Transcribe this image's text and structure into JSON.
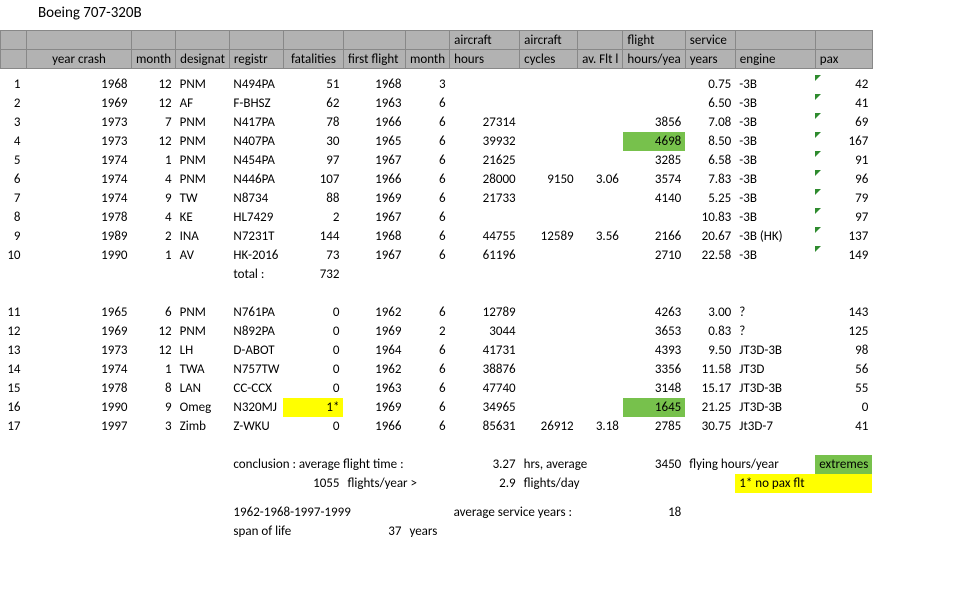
{
  "title": "Boeing 707-320B",
  "headers": {
    "top": {
      "hours": "aircraft",
      "cycles": "aircraft",
      "fhy": "flight",
      "svc": "service"
    },
    "main": {
      "year": "year crash",
      "month": "month",
      "desig": "designat",
      "reg": "registr",
      "fat": "fatalities",
      "ff": "first flight",
      "ffm": "month",
      "hours": "hours",
      "cycles": "cycles",
      "avflt": "av. Flt l",
      "fhy": "hours/yea",
      "svc": "years",
      "eng": "engine",
      "pax": "pax"
    }
  },
  "rows1": [
    {
      "n": "1",
      "year": "1968",
      "month": "12",
      "desig": "PNM",
      "reg": "N494PA",
      "fat": "51",
      "ff": "1968",
      "ffm": "3",
      "hours": "",
      "cycles": "",
      "avflt": "",
      "fhy": "",
      "svc": "0.75",
      "eng": "-3B",
      "pax": "42",
      "mk": true
    },
    {
      "n": "2",
      "year": "1969",
      "month": "12",
      "desig": "AF",
      "reg": "F-BHSZ",
      "fat": "62",
      "ff": "1963",
      "ffm": "6",
      "hours": "",
      "cycles": "",
      "avflt": "",
      "fhy": "",
      "svc": "6.50",
      "eng": "-3B",
      "pax": "41",
      "mk": true
    },
    {
      "n": "3",
      "year": "1973",
      "month": "7",
      "desig": "PNM",
      "reg": "N417PA",
      "fat": "78",
      "ff": "1966",
      "ffm": "6",
      "hours": "27314",
      "cycles": "",
      "avflt": "",
      "fhy": "3856",
      "svc": "7.08",
      "eng": "-3B",
      "pax": "69",
      "mk": true
    },
    {
      "n": "4",
      "year": "1973",
      "month": "12",
      "desig": "PNM",
      "reg": "N407PA",
      "fat": "30",
      "ff": "1965",
      "ffm": "6",
      "hours": "39932",
      "cycles": "",
      "avflt": "",
      "fhy": "4698",
      "fhy_hl": "green",
      "svc": "8.50",
      "eng": "-3B",
      "pax": "167",
      "mk": true
    },
    {
      "n": "5",
      "year": "1974",
      "month": "1",
      "desig": "PNM",
      "reg": "N454PA",
      "fat": "97",
      "ff": "1967",
      "ffm": "6",
      "hours": "21625",
      "cycles": "",
      "avflt": "",
      "fhy": "3285",
      "svc": "6.58",
      "eng": "-3B",
      "pax": "91",
      "mk": true
    },
    {
      "n": "6",
      "year": "1974",
      "month": "4",
      "desig": "PNM",
      "reg": "N446PA",
      "fat": "107",
      "ff": "1966",
      "ffm": "6",
      "hours": "28000",
      "cycles": "9150",
      "avflt": "3.06",
      "fhy": "3574",
      "svc": "7.83",
      "eng": "-3B",
      "pax": "96",
      "mk": true
    },
    {
      "n": "7",
      "year": "1974",
      "month": "9",
      "desig": "TW",
      "reg": "N8734",
      "fat": "88",
      "ff": "1969",
      "ffm": "6",
      "hours": "21733",
      "cycles": "",
      "avflt": "",
      "fhy": "4140",
      "svc": "5.25",
      "eng": "-3B",
      "pax": "79",
      "mk": true
    },
    {
      "n": "8",
      "year": "1978",
      "month": "4",
      "desig": "KE",
      "reg": "HL7429",
      "fat": "2",
      "ff": "1967",
      "ffm": "6",
      "hours": "",
      "cycles": "",
      "avflt": "",
      "fhy": "",
      "svc": "10.83",
      "eng": "-3B",
      "pax": "97",
      "mk": true
    },
    {
      "n": "9",
      "year": "1989",
      "month": "2",
      "desig": "INA",
      "reg": "N7231T",
      "fat": "144",
      "ff": "1968",
      "ffm": "6",
      "hours": "44755",
      "cycles": "12589",
      "avflt": "3.56",
      "fhy": "2166",
      "svc": "20.67",
      "eng": "-3B (HK)",
      "pax": "137",
      "mk": true
    },
    {
      "n": "10",
      "year": "1990",
      "month": "1",
      "desig": "AV",
      "reg": "HK-2016",
      "fat": "73",
      "ff": "1967",
      "ffm": "6",
      "hours": "61196",
      "cycles": "",
      "avflt": "",
      "fhy": "2710",
      "svc": "22.58",
      "eng": "-3B",
      "pax": "149",
      "mk": true
    }
  ],
  "total": {
    "label": "total :",
    "value": "732"
  },
  "rows2": [
    {
      "n": "11",
      "year": "1965",
      "month": "6",
      "desig": "PNM",
      "reg": "N761PA",
      "fat": "0",
      "ff": "1962",
      "ffm": "6",
      "hours": "12789",
      "cycles": "",
      "avflt": "",
      "fhy": "4263",
      "svc": "3.00",
      "eng": "?",
      "pax": "143"
    },
    {
      "n": "12",
      "year": "1969",
      "month": "12",
      "desig": "PNM",
      "reg": "N892PA",
      "fat": "0",
      "ff": "1969",
      "ffm": "2",
      "hours": "3044",
      "cycles": "",
      "avflt": "",
      "fhy": "3653",
      "svc": "0.83",
      "eng": "?",
      "pax": "125"
    },
    {
      "n": "13",
      "year": "1973",
      "month": "12",
      "desig": "LH",
      "reg": "D-ABOT",
      "fat": "0",
      "ff": "1964",
      "ffm": "6",
      "hours": "41731",
      "cycles": "",
      "avflt": "",
      "fhy": "4393",
      "svc": "9.50",
      "eng": "JT3D-3B",
      "pax": "98"
    },
    {
      "n": "14",
      "year": "1974",
      "month": "1",
      "desig": "TWA",
      "reg": "N757TW",
      "fat": "0",
      "ff": "1962",
      "ffm": "6",
      "hours": "38876",
      "cycles": "",
      "avflt": "",
      "fhy": "3356",
      "svc": "11.58",
      "eng": "JT3D",
      "pax": "56"
    },
    {
      "n": "15",
      "year": "1978",
      "month": "8",
      "desig": "LAN",
      "reg": "CC-CCX",
      "fat": "0",
      "ff": "1963",
      "ffm": "6",
      "hours": "47740",
      "cycles": "",
      "avflt": "",
      "fhy": "3148",
      "svc": "15.17",
      "eng": "JT3D-3B",
      "pax": "55"
    },
    {
      "n": "16",
      "year": "1990",
      "month": "9",
      "desig": "Omeg",
      "reg": "N320MJ",
      "fat": "1*",
      "fat_hl": "yellow",
      "ff": "1969",
      "ffm": "6",
      "hours": "34965",
      "cycles": "",
      "avflt": "",
      "fhy": "1645",
      "fhy_hl": "green",
      "svc": "21.25",
      "eng": "JT3D-3B",
      "pax": "0"
    },
    {
      "n": "17",
      "year": "1997",
      "month": "3",
      "desig": "Zimb",
      "reg": "Z-WKU",
      "fat": "0",
      "ff": "1966",
      "ffm": "6",
      "hours": "85631",
      "cycles": "26912",
      "avflt": "3.18",
      "fhy": "2785",
      "svc": "30.75",
      "eng": "Jt3D-7",
      "pax": "41"
    }
  ],
  "footer": {
    "c1a": "conclusion : average flight time :",
    "c1b": "3.27",
    "c1c": "hrs, average",
    "c1d": "3450",
    "c1e": "flying hours/year",
    "c1f": "extremes",
    "c2a": "1055",
    "c2b": "flights/year >",
    "c2c": "2.9",
    "c2d": "flights/day",
    "c2e": "1* no pax flt",
    "c3a": "1962-1968-1997-1999",
    "c3b": "average service years :",
    "c3c": "18",
    "c4a": "span of life",
    "c4b": "37",
    "c4c": "years"
  }
}
